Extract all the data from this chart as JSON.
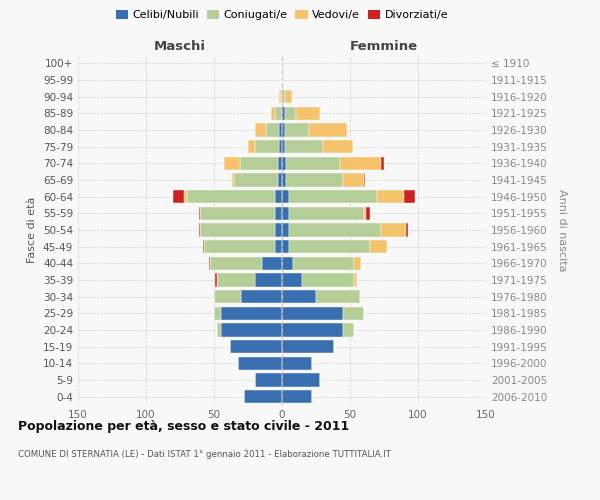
{
  "age_groups": [
    "0-4",
    "5-9",
    "10-14",
    "15-19",
    "20-24",
    "25-29",
    "30-34",
    "35-39",
    "40-44",
    "45-49",
    "50-54",
    "55-59",
    "60-64",
    "65-69",
    "70-74",
    "75-79",
    "80-84",
    "85-89",
    "90-94",
    "95-99",
    "100+"
  ],
  "birth_years": [
    "2006-2010",
    "2001-2005",
    "1996-2000",
    "1991-1995",
    "1986-1990",
    "1981-1985",
    "1976-1980",
    "1971-1975",
    "1966-1970",
    "1961-1965",
    "1956-1960",
    "1951-1955",
    "1946-1950",
    "1941-1945",
    "1936-1940",
    "1931-1935",
    "1926-1930",
    "1921-1925",
    "1916-1920",
    "1911-1915",
    "≤ 1910"
  ],
  "males_celibi": [
    28,
    20,
    32,
    38,
    45,
    45,
    30,
    20,
    15,
    5,
    5,
    5,
    5,
    3,
    3,
    2,
    2,
    0,
    0,
    0,
    0
  ],
  "males_coniugati": [
    0,
    0,
    0,
    0,
    3,
    5,
    20,
    28,
    38,
    52,
    55,
    55,
    65,
    32,
    28,
    18,
    10,
    5,
    1,
    0,
    0
  ],
  "males_vedovi": [
    0,
    0,
    0,
    0,
    0,
    0,
    0,
    0,
    0,
    0,
    0,
    0,
    2,
    2,
    12,
    5,
    8,
    3,
    1,
    0,
    0
  ],
  "males_divorziati": [
    0,
    0,
    0,
    0,
    0,
    0,
    0,
    1,
    1,
    1,
    1,
    1,
    8,
    0,
    0,
    0,
    0,
    0,
    0,
    0,
    0
  ],
  "females_nubili": [
    22,
    28,
    22,
    38,
    45,
    45,
    25,
    15,
    8,
    5,
    5,
    5,
    5,
    3,
    3,
    2,
    2,
    2,
    0,
    0,
    0
  ],
  "females_coniugate": [
    0,
    0,
    0,
    0,
    8,
    15,
    32,
    38,
    45,
    60,
    68,
    55,
    65,
    42,
    40,
    28,
    18,
    8,
    2,
    0,
    0
  ],
  "females_vedove": [
    0,
    0,
    0,
    0,
    0,
    0,
    0,
    2,
    5,
    12,
    18,
    2,
    20,
    15,
    30,
    22,
    28,
    18,
    5,
    0,
    0
  ],
  "females_divorziate": [
    0,
    0,
    0,
    0,
    0,
    0,
    0,
    0,
    0,
    0,
    2,
    3,
    8,
    1,
    2,
    0,
    0,
    0,
    0,
    0,
    0
  ],
  "colors": {
    "celibi": "#3a6faf",
    "coniugati": "#b5cd96",
    "vedovi": "#f5c36b",
    "divorziati": "#cc2222"
  },
  "title": "Popolazione per età, sesso e stato civile - 2011",
  "subtitle": "COMUNE DI STERNATIA (LE) - Dati ISTAT 1° gennaio 2011 - Elaborazione TUTTITALIA.IT",
  "legend_labels": [
    "Celibi/Nubili",
    "Coniugati/e",
    "Vedovi/e",
    "Divorziati/e"
  ],
  "ylabel_left": "Fasce di età",
  "ylabel_right": "Anni di nascita",
  "background_color": "#f8f8f8",
  "grid_color": "#cccccc"
}
